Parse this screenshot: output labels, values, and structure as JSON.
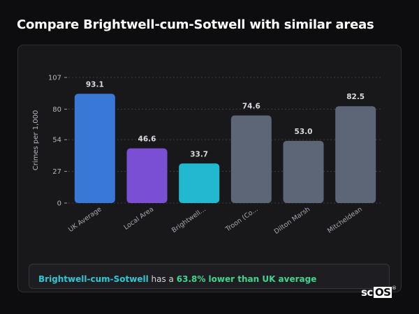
{
  "header": {
    "title": "Compare Brightwell-cum-Sotwell with similar areas"
  },
  "chart_data": {
    "type": "bar",
    "categories": [
      "UK Average",
      "Local Area",
      "Brightwell...",
      "Troon (Co...",
      "Dilton Marsh",
      "Mitcheldean"
    ],
    "values": [
      93.1,
      46.6,
      33.7,
      74.6,
      53.0,
      82.5
    ],
    "value_labels": [
      "93.1",
      "46.6",
      "33.7",
      "74.6",
      "53.0",
      "82.5"
    ],
    "colors": [
      "#3a78d8",
      "#7a4fd4",
      "#22b8cf",
      "#5c6677",
      "#5c6677",
      "#5c6677"
    ],
    "ylabel": "Crimes per 1,000",
    "yticks": [
      0,
      27,
      54,
      80,
      107
    ],
    "ylim": [
      0,
      107
    ],
    "grid": "dotted horizontal",
    "legend": "none"
  },
  "callout": {
    "area_name": "Brightwell-cum-Sotwell",
    "middle_text": "has a",
    "comparison": "63.8% lower than UK average"
  },
  "brand": {
    "prefix": "sc",
    "boxed": "OS",
    "reg": "®"
  }
}
